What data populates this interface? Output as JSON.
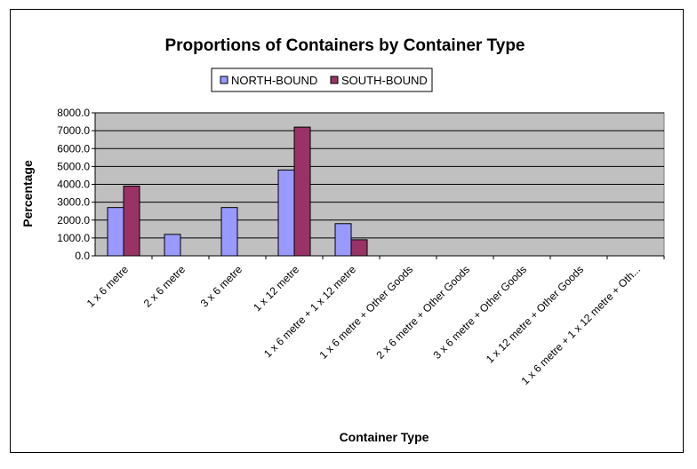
{
  "chart_data": {
    "type": "bar",
    "title": "Proportions of Containers by Container Type",
    "xlabel": "Container Type",
    "ylabel": "Percentage",
    "ylim": [
      0,
      8000
    ],
    "yticks": [
      "0.0",
      "1000.0",
      "2000.0",
      "3000.0",
      "4000.0",
      "5000.0",
      "6000.0",
      "7000.0",
      "8000.0"
    ],
    "grid": true,
    "legend_position": "top",
    "categories": [
      "1 x 6 metre",
      "2 x 6 metre",
      "3 x 6 metre",
      "1 x 12 metre",
      "1 x 6 metre + 1 x 12 metre",
      "1 x 6 metre + Other Goods",
      "2 x 6 metre + Other Goods",
      "3 x 6 metre + Other Goods",
      "1 x 12 metre + Other Goods",
      "1 x 6 metre + 1 x 12 metre + Oth..."
    ],
    "series": [
      {
        "name": "NORTH-BOUND",
        "color": "#9999ff",
        "values": [
          2700,
          1200,
          2700,
          4800,
          1800,
          0,
          0,
          0,
          0,
          0
        ]
      },
      {
        "name": "SOUTH-BOUND",
        "color": "#993366",
        "values": [
          3900,
          0,
          0,
          7200,
          900,
          0,
          0,
          0,
          0,
          0
        ]
      }
    ],
    "plot_background": "#c0c0c0"
  }
}
